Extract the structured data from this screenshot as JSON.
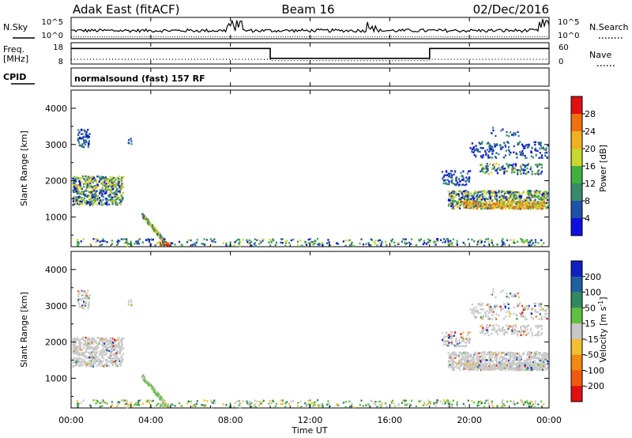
{
  "header": {
    "station": "Adak East (fitACF)",
    "beam": "Beam 16",
    "date": "02/Dec/2016"
  },
  "labels": {
    "nsky": "N.Sky",
    "nsearch": "N.Search",
    "freq": "Freq.",
    "freq_unit": "[MHz]",
    "nave": "Nave",
    "cpid": "CPID",
    "cpid_value": "normalsound (fast) 157 RF",
    "exp_top": "10^5",
    "exp_bottom": "10^0",
    "freq_ticks": [
      "18",
      "8"
    ],
    "nave_ticks": [
      "60",
      "0"
    ]
  },
  "chart_data": [
    {
      "type": "line",
      "name": "noise panel",
      "series": [
        {
          "name": "N.Sky",
          "style": "solid"
        },
        {
          "name": "N.Search",
          "style": "dotted"
        }
      ],
      "ylim_log10": [
        0,
        5
      ]
    },
    {
      "type": "line",
      "name": "frequency / nave panel",
      "series": [
        {
          "name": "Freq.",
          "style": "solid",
          "unit": "MHz",
          "x": [
            "00:00",
            "10:00",
            "10:00",
            "18:00",
            "18:00",
            "24:00"
          ],
          "values": [
            15.5,
            15.5,
            10.5,
            10.5,
            15.5,
            15.5
          ]
        },
        {
          "name": "Nave",
          "style": "dotted",
          "x": [
            "00:00",
            "10:00",
            "10:00",
            "18:00",
            "18:00",
            "24:00"
          ],
          "values": [
            12,
            12,
            8,
            8,
            12,
            12
          ]
        }
      ],
      "freq_ylim": [
        8,
        18
      ],
      "nave_ylim": [
        0,
        60
      ]
    },
    {
      "type": "heatmap",
      "name": "power",
      "ylabel": "Slant Range [km]",
      "colorbar_label": "Power [dB]",
      "colorbar_ticks": [
        "28",
        "24",
        "20",
        "16",
        "12",
        "8",
        "4"
      ],
      "colorbar_colors": [
        "#e01010",
        "#f07010",
        "#f0b020",
        "#c8d830",
        "#40b040",
        "#3a8a6a",
        "#2050a8",
        "#1010e0"
      ],
      "ylim": [
        180,
        4500
      ],
      "yticks": [
        1000,
        2000,
        3000,
        4000
      ]
    },
    {
      "type": "heatmap",
      "name": "velocity",
      "ylabel": "Slant Range [km]",
      "colorbar_label": "Velocity [m s",
      "colorbar_label_sup": "-1",
      "colorbar_ticks": [
        "200",
        "100",
        "50",
        "15",
        "-15",
        "-50",
        "-100",
        "-200"
      ],
      "colorbar_colors": [
        "#1020c0",
        "#2060a0",
        "#308a60",
        "#60c040",
        "#c8c8c8",
        "#f0c030",
        "#f08a10",
        "#f05a10",
        "#e01010"
      ],
      "ylim": [
        180,
        4500
      ],
      "yticks": [
        1000,
        2000,
        3000,
        4000
      ]
    }
  ],
  "xaxis": {
    "label": "Time UT",
    "ticks": [
      "00:00",
      "04:00",
      "08:00",
      "12:00",
      "16:00",
      "20:00",
      "00:00"
    ]
  }
}
